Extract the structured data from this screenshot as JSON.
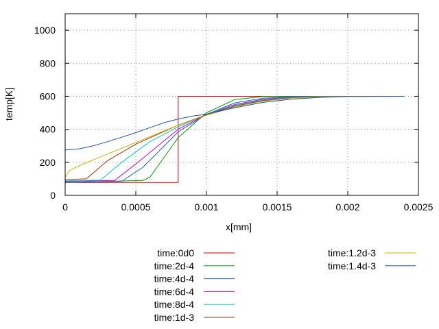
{
  "chart_data": {
    "type": "line",
    "title": "",
    "xlabel": "x[mm]",
    "ylabel": "temp[K]",
    "xlim": [
      0,
      0.0025
    ],
    "ylim": [
      0,
      1100
    ],
    "xticks": [
      0,
      0.0005,
      0.001,
      0.0015,
      0.002,
      0.0025
    ],
    "xtick_labels": [
      "0",
      "0.0005",
      "0.001",
      "0.0015",
      "0.002",
      "0.0025"
    ],
    "yticks": [
      0,
      200,
      400,
      600,
      800,
      1000
    ],
    "ytick_labels": [
      "0",
      "200",
      "400",
      "600",
      "800",
      "1000"
    ],
    "grid": true,
    "legend_position": "bottom",
    "series": [
      {
        "name": "time:0d0",
        "color": "#cc0000",
        "x": [
          0,
          0.0008,
          0.0008,
          0.0024
        ],
        "y": [
          78,
          78,
          600,
          600
        ]
      },
      {
        "name": "time:2d-4",
        "color": "#009900",
        "x": [
          0,
          0.00055,
          0.0006,
          0.0008,
          0.001,
          0.0012,
          0.0014,
          0.0016,
          0.0018,
          0.002,
          0.0024
        ],
        "y": [
          78,
          90,
          110,
          350,
          500,
          580,
          598,
          600,
          600,
          600,
          600
        ]
      },
      {
        "name": "time:4d-4",
        "color": "#1f5fc2",
        "x": [
          0,
          0.0004,
          0.00055,
          0.0008,
          0.001,
          0.0012,
          0.0014,
          0.0016,
          0.0018,
          0.002,
          0.0024
        ],
        "y": [
          80,
          85,
          170,
          385,
          490,
          560,
          588,
          597,
          600,
          600,
          600
        ]
      },
      {
        "name": "time:6d-4",
        "color": "#cc00cc",
        "x": [
          0,
          0.00035,
          0.0005,
          0.0008,
          0.001,
          0.0012,
          0.0014,
          0.0016,
          0.0018,
          0.002,
          0.0024
        ],
        "y": [
          85,
          90,
          190,
          400,
          490,
          550,
          582,
          595,
          599,
          600,
          600
        ]
      },
      {
        "name": "time:8d-4",
        "color": "#00cccc",
        "x": [
          0,
          0.00025,
          0.0004,
          0.0006,
          0.0008,
          0.001,
          0.0012,
          0.0014,
          0.0016,
          0.0018,
          0.002,
          0.0024
        ],
        "y": [
          88,
          92,
          200,
          325,
          415,
          490,
          545,
          578,
          592,
          598,
          600,
          600
        ]
      },
      {
        "name": "time:1d-3",
        "color": "#993300",
        "x": [
          0,
          0.00015,
          0.0003,
          0.0005,
          0.0008,
          0.001,
          0.0012,
          0.0014,
          0.0016,
          0.0018,
          0.002,
          0.0024
        ],
        "y": [
          95,
          100,
          210,
          310,
          425,
          488,
          540,
          574,
          590,
          597,
          600,
          600
        ]
      },
      {
        "name": "time:1.2d-3",
        "color": "#c8b400",
        "x": [
          0,
          3e-05,
          0.0001,
          0.0002,
          0.0004,
          0.0006,
          0.0008,
          0.001,
          0.0012,
          0.0014,
          0.0016,
          0.0018,
          0.002,
          0.0024
        ],
        "y": [
          110,
          150,
          180,
          215,
          285,
          355,
          425,
          485,
          535,
          570,
          588,
          596,
          599,
          600
        ]
      },
      {
        "name": "time:1.4d-3",
        "color": "#1f4fa8",
        "x": [
          0,
          0.0001,
          0.0002,
          0.0003,
          0.0004,
          0.0005,
          0.0006,
          0.0007,
          0.0008,
          0.0009,
          0.001,
          0.0012,
          0.0014,
          0.0016,
          0.0018,
          0.002,
          0.0024
        ],
        "y": [
          275,
          282,
          300,
          325,
          352,
          380,
          410,
          440,
          462,
          480,
          492,
          530,
          563,
          582,
          593,
          598,
          600
        ]
      }
    ]
  }
}
